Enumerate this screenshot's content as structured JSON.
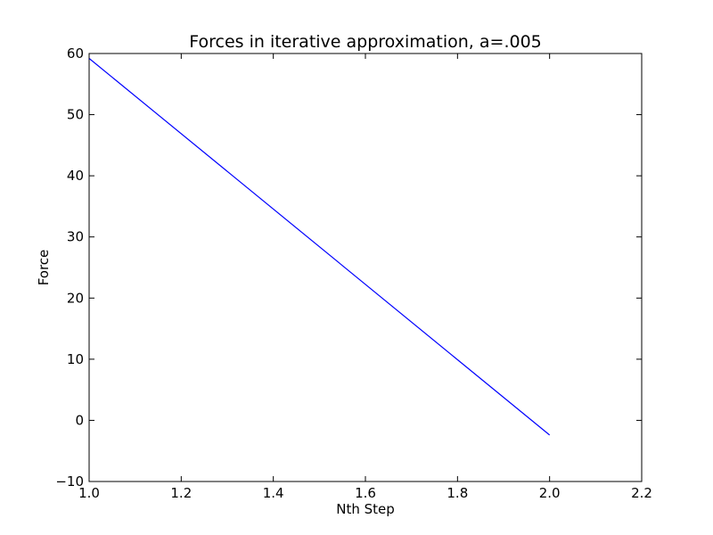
{
  "chart_data": {
    "type": "line",
    "title": "Forces in iterative approximation, a=.005",
    "xlabel": "Nth Step",
    "ylabel": "Force",
    "xlim": [
      1.0,
      2.2
    ],
    "ylim": [
      -10,
      60
    ],
    "x_ticks": [
      "1.0",
      "1.2",
      "1.4",
      "1.6",
      "1.8",
      "2.0",
      "2.2"
    ],
    "y_ticks": [
      "−10",
      "0",
      "10",
      "20",
      "30",
      "40",
      "50",
      "60"
    ],
    "grid": false,
    "series": [
      {
        "color": "#0000ff",
        "x": [
          1.0,
          2.0
        ],
        "y": [
          59.2,
          -2.4
        ]
      }
    ]
  }
}
